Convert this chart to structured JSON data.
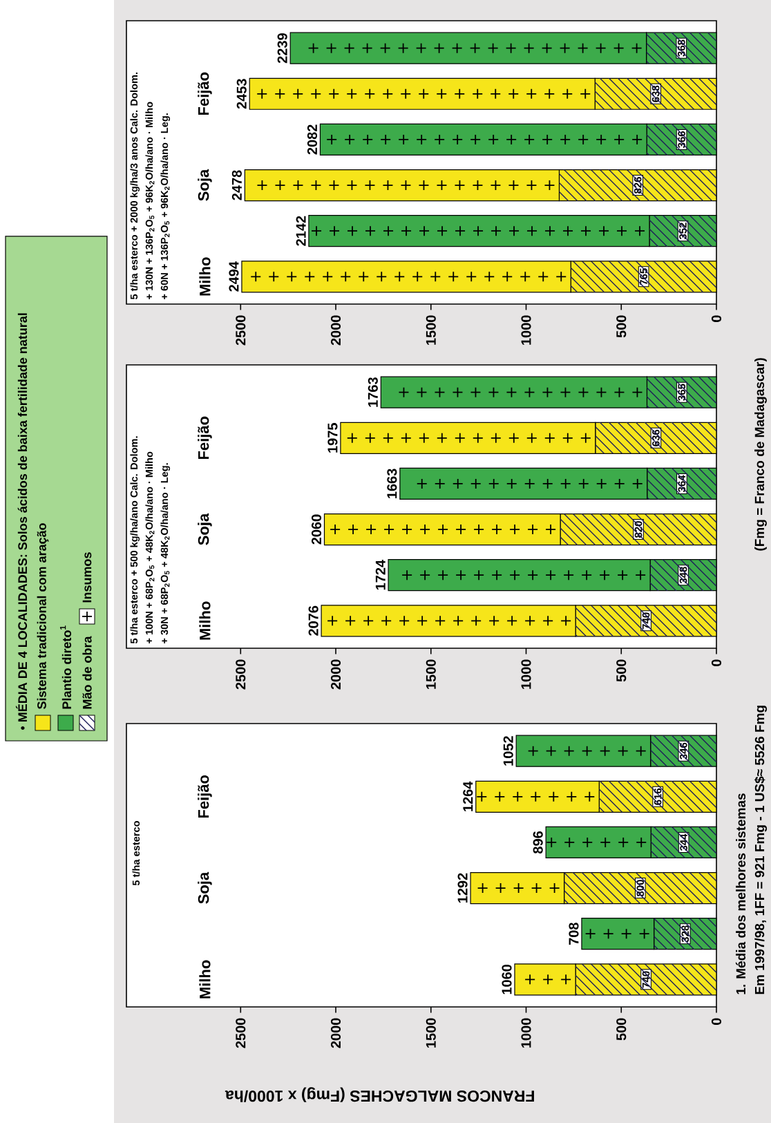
{
  "chart_data": [
    {
      "type": "bar",
      "stacked": true,
      "orientation": "horizontal",
      "xlabel": "FRANCOS MALGACHES (Fmg) x 1000/ha",
      "categories": [
        null,
        "Feijão",
        null,
        "Soja",
        null,
        "Milho"
      ],
      "xlim": [
        3100,
        0
      ],
      "xticks": [
        0,
        500,
        1000,
        1500,
        2000,
        2500
      ],
      "series": [
        {
          "colors": [
            "#3dab4b",
            "#f6e51a",
            "#3dab4b",
            "#f6e51a",
            "#3dab4b",
            "#f6e51a"
          ],
          "values": [
            346,
            616,
            344,
            800,
            328,
            740
          ],
          "value_labels": [
            "346",
            "616",
            "344",
            "800",
            "328",
            "740"
          ]
        },
        {
          "colors": [
            "#3dab4b",
            "#f6e51a",
            "#3dab4b",
            "#f6e51a",
            "#3dab4b",
            "#f6e51a"
          ],
          "values": [
            706,
            648,
            552,
            492,
            380,
            320
          ]
        }
      ],
      "totals": [
        "1052",
        "1264",
        "896",
        "1292",
        "708",
        "1060"
      ],
      "annotations": [
        "5 t/ha esterco",
        "1. Média dos melhores sistemas",
        "Em 1997/98, 1FF = 921 Fmg - 1 US$≈ 5526 Fmg"
      ]
    },
    {
      "type": "bar",
      "stacked": true,
      "orientation": "horizontal",
      "categories": [
        null,
        "Feijão",
        null,
        "Soja",
        null,
        "Milho"
      ],
      "xlim": [
        3100,
        0
      ],
      "xticks": [
        0,
        500,
        1000,
        1500,
        2000,
        2500
      ],
      "series": [
        {
          "colors": [
            "#3dab4b",
            "#f6e51a",
            "#3dab4b",
            "#f6e51a",
            "#3dab4b",
            "#f6e51a"
          ],
          "values": [
            365,
            636,
            364,
            820,
            348,
            740
          ],
          "value_labels": [
            "365",
            "636",
            "364",
            "820",
            "348",
            "740"
          ]
        },
        {
          "colors": [
            "#3dab4b",
            "#f6e51a",
            "#3dab4b",
            "#f6e51a",
            "#3dab4b",
            "#f6e51a"
          ],
          "values": [
            1398,
            1339,
            1299,
            1240,
            1376,
            1336
          ]
        }
      ],
      "totals": [
        "1763",
        "1975",
        "1663",
        "2060",
        "1724",
        "2076"
      ],
      "annotations": [
        "5 t/ha esterco + 500 kg/ha/ano Calc. Dolom.",
        "+ 100N + 68P$_{2}$O$_{5}$ + 48K$_{2}$O/ha/ano · Milho",
        "+ 30N + 68P$_{2}$O$_{5}$ + 48K$_{2}$O/ha/ano · Leg.",
        "(Fmg = Franco de Madagascar)"
      ]
    },
    {
      "type": "bar",
      "stacked": true,
      "orientation": "horizontal",
      "categories": [
        null,
        "Feijão",
        null,
        "Soja",
        null,
        "Milho"
      ],
      "xlim": [
        3100,
        0
      ],
      "xticks": [
        0,
        500,
        1000,
        1500,
        2000,
        2500
      ],
      "series": [
        {
          "colors": [
            "#3dab4b",
            "#f6e51a",
            "#3dab4b",
            "#f6e51a",
            "#3dab4b",
            "#f6e51a"
          ],
          "values": [
            368,
            638,
            366,
            826,
            352,
            765
          ],
          "value_labels": [
            "368",
            "638",
            "366",
            "826",
            "352",
            "765"
          ]
        },
        {
          "colors": [
            "#3dab4b",
            "#f6e51a",
            "#3dab4b",
            "#f6e51a",
            "#3dab4b",
            "#f6e51a"
          ],
          "values": [
            1871,
            1815,
            1716,
            1652,
            1790,
            1729
          ]
        }
      ],
      "totals": [
        "2239",
        "2453",
        "2082",
        "2478",
        "2142",
        "2494"
      ],
      "annotations": [
        "5 t/ha esterco + 2000 kg/ha/3 anos Calc. Dolom.",
        "+ 130N + 136P$_{2}$O$_{5}$ + 96K$_{2}$O/ha/ano · Milho",
        "+ 60N + 136P$_{2}$O$_{5}$ + 96K$_{2}$O/ha/ano · Leg."
      ]
    },
    {
      "type": "other",
      "title": "• MÉDIA DE 4 LOCALIDADES: Solos ácidos de baixa fertilidade natural",
      "annotations": [
        "Sistema tradicional com aração",
        "Plantio direto$^{1}$",
        "Mão de obra",
        "Insumos"
      ]
    }
  ]
}
